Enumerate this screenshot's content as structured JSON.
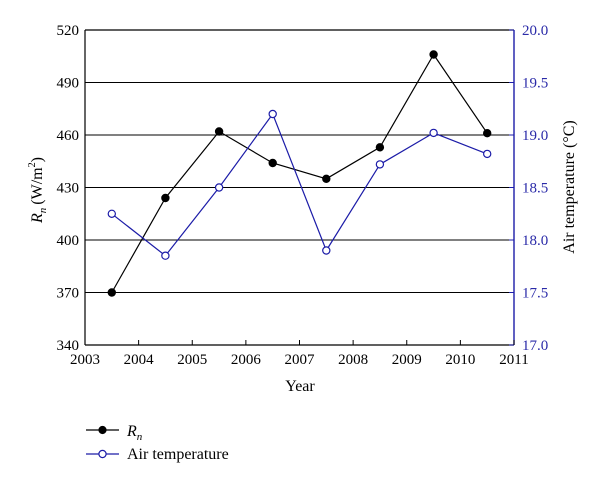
{
  "chart_data": {
    "type": "line",
    "xlabel": "Year",
    "ylabel_left": {
      "symbol": "R",
      "sub": "n",
      "unit": "(W/m",
      "sup": "2",
      "close": ")"
    },
    "ylabel_right": "Air temperature (°C)",
    "xlim": [
      2003,
      2011
    ],
    "ylim_left": [
      340,
      520
    ],
    "ylim_right": [
      17.0,
      20.0
    ],
    "x_ticks": [
      "2003",
      "2004",
      "2005",
      "2006",
      "2007",
      "2008",
      "2009",
      "2010",
      "2011"
    ],
    "y_left_ticks": [
      "340",
      "370",
      "400",
      "430",
      "460",
      "490",
      "520"
    ],
    "y_right_ticks": [
      "17.0",
      "17.5",
      "18.0",
      "18.5",
      "19.0",
      "19.5",
      "20.0"
    ],
    "grid": "horizontal",
    "legend_position": "bottom-left",
    "series": [
      {
        "name": "R",
        "name_sub": "n",
        "axis": "left",
        "marker": "filled-circle",
        "color": "#000000",
        "x": [
          2003.5,
          2004.5,
          2005.5,
          2006.5,
          2007.5,
          2008.5,
          2009.5,
          2010.5
        ],
        "values": [
          370,
          424,
          462,
          444,
          435,
          453,
          506,
          461
        ]
      },
      {
        "name": "Air temperature",
        "axis": "right",
        "marker": "open-circle",
        "color": "#1c1ca8",
        "x": [
          2003.5,
          2004.5,
          2005.5,
          2006.5,
          2007.5,
          2008.5,
          2009.5,
          2010.5
        ],
        "values": [
          18.25,
          17.85,
          18.5,
          19.2,
          17.9,
          18.72,
          19.02,
          18.82
        ]
      }
    ]
  }
}
